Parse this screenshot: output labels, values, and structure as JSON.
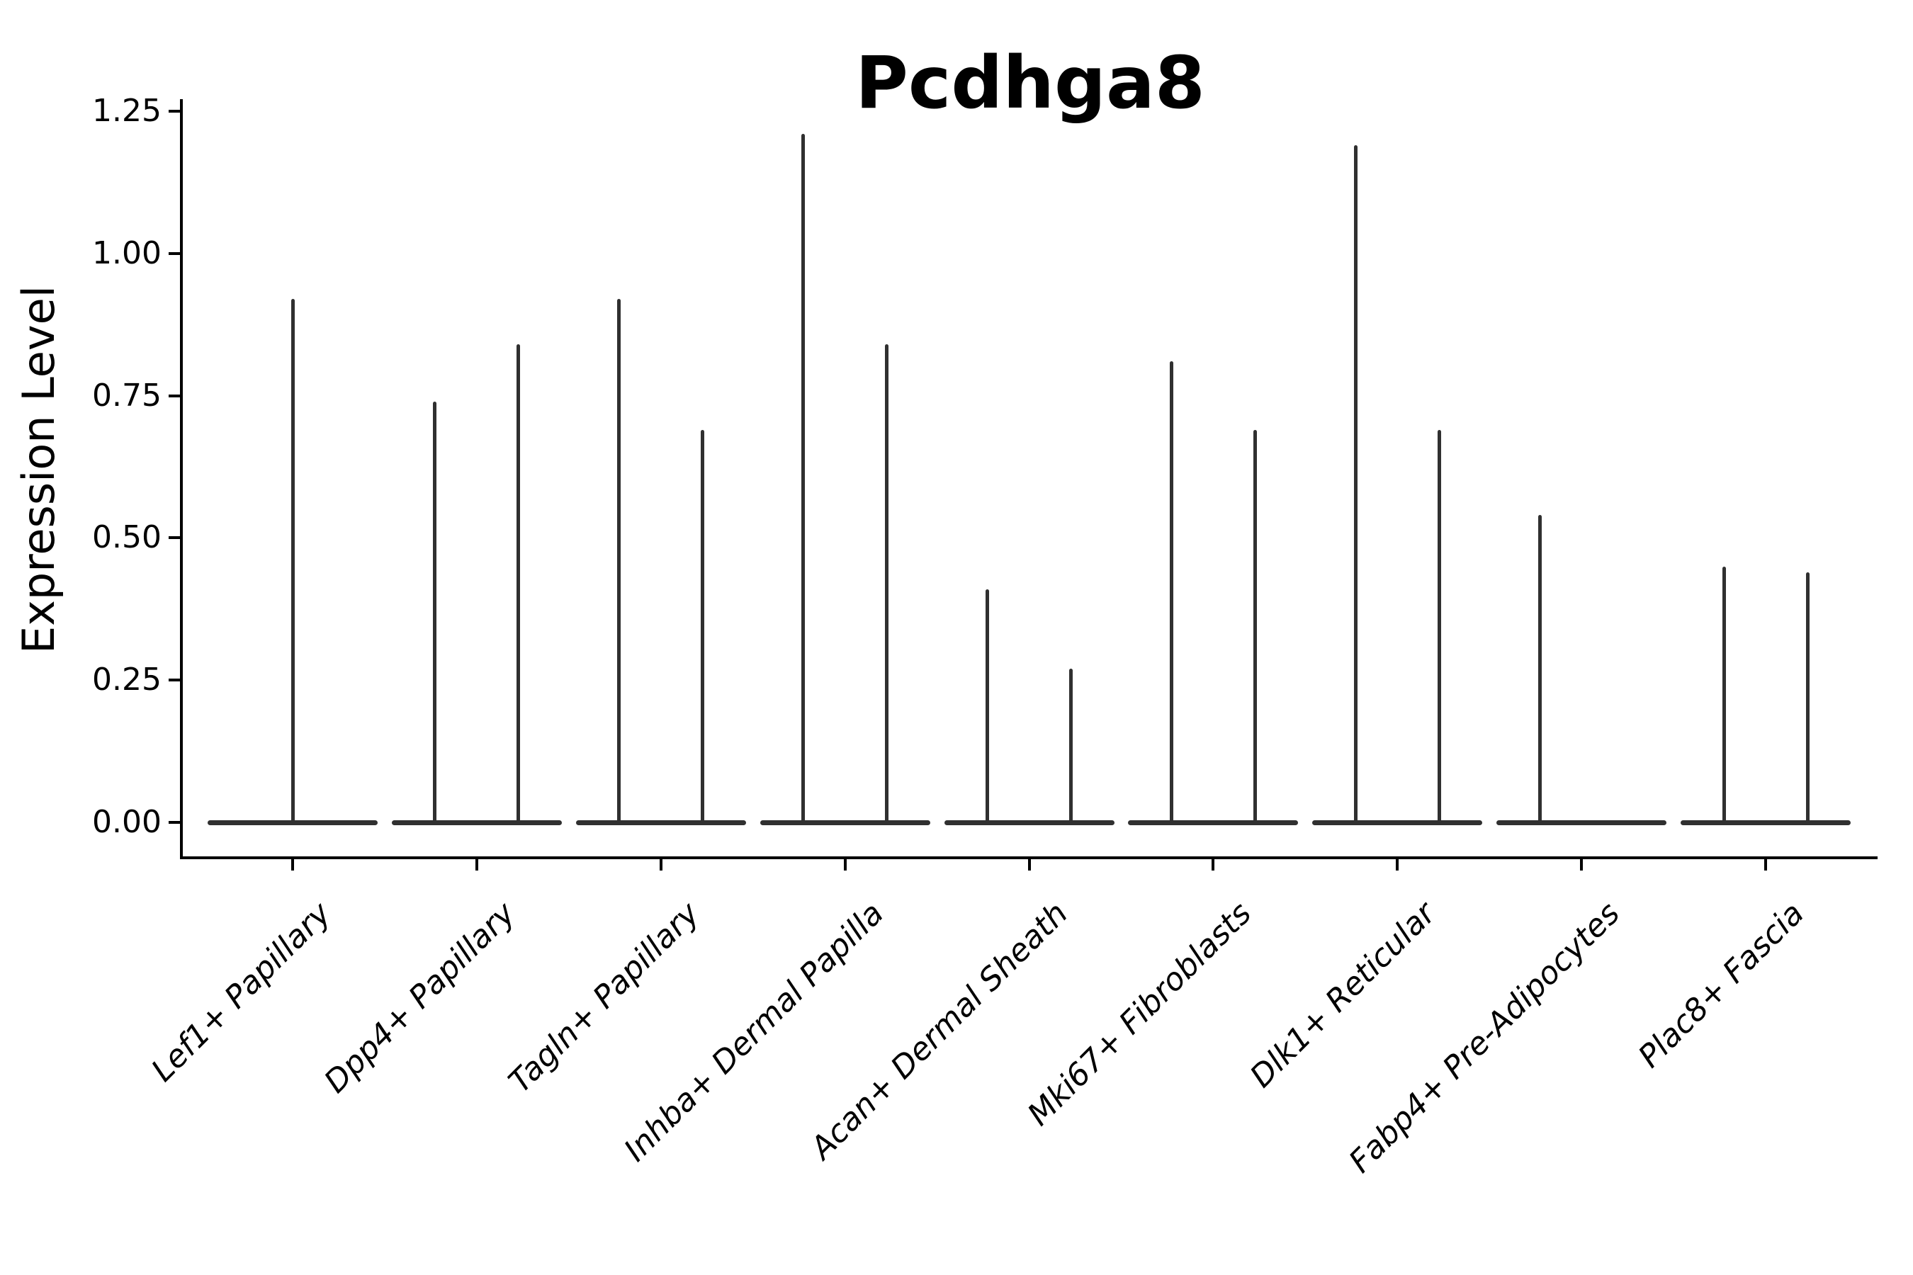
{
  "title": "Pcdhga8",
  "y_axis": {
    "label": "Expression Level",
    "tick_labels": [
      "0.00",
      "0.25",
      "0.50",
      "0.75",
      "1.00",
      "1.25"
    ]
  },
  "x_axis": {
    "label": "",
    "tick_labels": [
      "Lef1+ Papillary",
      "Dpp4+ Papillary",
      "Tagln+ Papillary",
      "Inhba+ Dermal Papilla",
      "Acan+ Dermal Sheath",
      "Mki67+ Fibroblasts",
      "Dlk1+ Reticular",
      "Fabp4+ Pre-Adipocytes",
      "Plac8+ Fascia"
    ]
  },
  "chart_data": {
    "type": "violin",
    "title": "Pcdhga8",
    "xlabel": "",
    "ylabel": "Expression Level",
    "ylim": [
      0,
      1.25
    ],
    "y_ticks": [
      0,
      0.25,
      0.5,
      0.75,
      1.0,
      1.25
    ],
    "y_tick_labels": [
      "0.00",
      "0.25",
      "0.50",
      "0.75",
      "1.00",
      "1.25"
    ],
    "grid": false,
    "legend": "none",
    "violin_shape": "thin-spike-with-flat-base-at-zero",
    "dodge_offset_fraction": 0.227,
    "categories": [
      "Lef1+ Papillary",
      "Dpp4+ Papillary",
      "Tagln+ Papillary",
      "Inhba+ Dermal Papilla",
      "Acan+ Dermal Sheath",
      "Mki67+ Fibroblasts",
      "Dlk1+ Reticular",
      "Fabp4+ Pre-Adipocytes",
      "Plac8+ Fascia"
    ],
    "series": [
      {
        "category": "Lef1+ Papillary",
        "violins": [
          {
            "position": "center",
            "max": 0.92
          }
        ]
      },
      {
        "category": "Dpp4+ Papillary",
        "violins": [
          {
            "position": "left",
            "max": 0.74
          },
          {
            "position": "right",
            "max": 0.84
          }
        ]
      },
      {
        "category": "Tagln+ Papillary",
        "violins": [
          {
            "position": "left",
            "max": 0.92
          },
          {
            "position": "right",
            "max": 0.69
          }
        ]
      },
      {
        "category": "Inhba+ Dermal Papilla",
        "violins": [
          {
            "position": "left",
            "max": 1.21
          },
          {
            "position": "right",
            "max": 0.84
          }
        ]
      },
      {
        "category": "Acan+ Dermal Sheath",
        "violins": [
          {
            "position": "left",
            "max": 0.41
          },
          {
            "position": "right",
            "max": 0.27
          }
        ]
      },
      {
        "category": "Mki67+ Fibroblasts",
        "violins": [
          {
            "position": "left",
            "max": 0.81
          },
          {
            "position": "right",
            "max": 0.69
          }
        ]
      },
      {
        "category": "Dlk1+ Reticular",
        "violins": [
          {
            "position": "left",
            "max": 1.19
          },
          {
            "position": "right",
            "max": 0.69
          }
        ]
      },
      {
        "category": "Fabp4+ Pre-Adipocytes",
        "violins": [
          {
            "position": "left",
            "max": 0.54
          }
        ]
      },
      {
        "category": "Plac8+ Fascia",
        "violins": [
          {
            "position": "left",
            "max": 0.45
          },
          {
            "position": "right",
            "max": 0.44
          }
        ]
      }
    ],
    "colors": {
      "violin": "#303030",
      "axis": "#000000",
      "text": "#000000",
      "background": "#ffffff"
    }
  }
}
